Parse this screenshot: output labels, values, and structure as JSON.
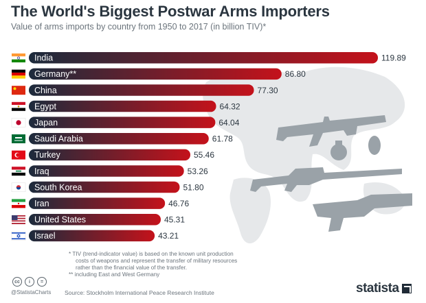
{
  "header": {
    "title": "The World's Biggest Postwar Arms Importers",
    "subtitle": "Value of arms imports by country from 1950 to 2017 (in billion TIV)*"
  },
  "chart_data": {
    "type": "bar",
    "orientation": "horizontal",
    "title": "The World's Biggest Postwar Arms Importers",
    "subtitle": "Value of arms imports by country from 1950 to 2017 (in billion TIV)*",
    "categories": [
      "India",
      "Germany**",
      "China",
      "Egypt",
      "Japan",
      "Saudi Arabia",
      "Turkey",
      "Iraq",
      "South Korea",
      "Iran",
      "United States",
      "Israel"
    ],
    "values": [
      119.89,
      86.8,
      77.3,
      64.32,
      64.04,
      61.78,
      55.46,
      53.26,
      51.8,
      46.76,
      45.31,
      43.21
    ],
    "value_labels": [
      "119.89",
      "86.80",
      "77.30",
      "64.32",
      "64.04",
      "61.78",
      "55.46",
      "53.26",
      "51.80",
      "46.76",
      "45.31",
      "43.21"
    ],
    "flags": [
      "india-flag-icon",
      "germany-flag-icon",
      "china-flag-icon",
      "egypt-flag-icon",
      "japan-flag-icon",
      "saudi-arabia-flag-icon",
      "turkey-flag-icon",
      "iraq-flag-icon",
      "south-korea-flag-icon",
      "iran-flag-icon",
      "united-states-flag-icon",
      "israel-flag-icon"
    ],
    "xlim": [
      0,
      119.89
    ],
    "grid": false,
    "colors": {
      "bar_start": "#1c2b3c",
      "bar_end": "#c4121b",
      "label_text": "#ffffff",
      "value_text": "#2b3640"
    }
  },
  "background": {
    "decorations": [
      "world-map",
      "rifle-icon",
      "grenade-icon",
      "sniper-rifle-icon",
      "launcher-icon"
    ],
    "color": "#e6e8ea"
  },
  "footer": {
    "footnote_1_lines": [
      "*  TIV (trend-indicator value) is based on the known unit production",
      "costs of weapons and represent the transfer of military resources",
      "rather than the financial value of the transfer."
    ],
    "footnote_2": "** including East and West Germany",
    "handle": "@StatistaCharts",
    "source": "Source: Stockholm International Peace Research Institute",
    "license_icons": [
      "cc",
      "i",
      "="
    ],
    "brand": "statista"
  }
}
